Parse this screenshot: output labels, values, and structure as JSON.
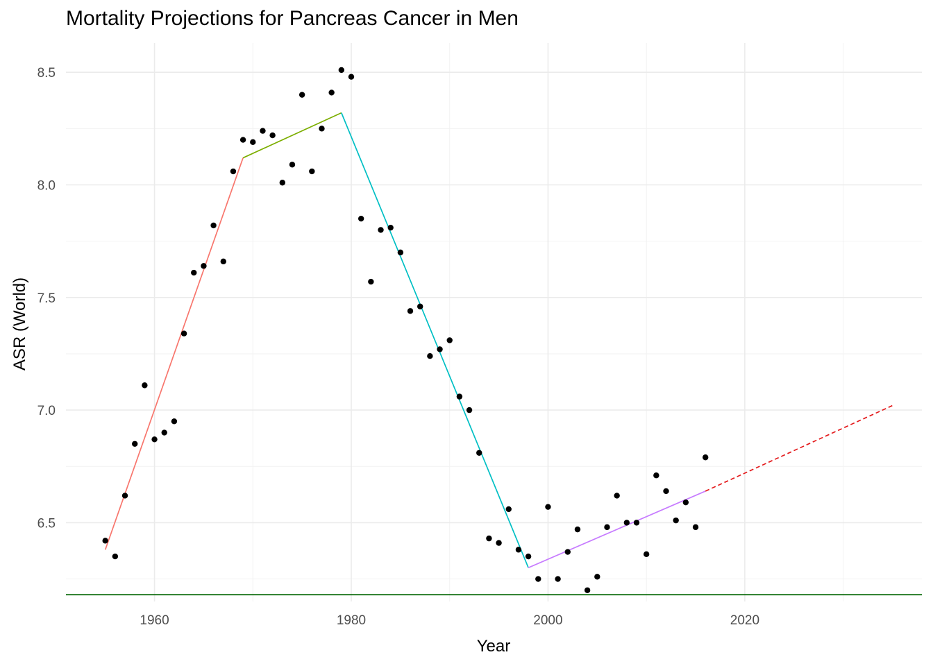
{
  "chart_data": {
    "type": "line",
    "title": "Mortality Projections for Pancreas Cancer in Men",
    "xlabel": "Year",
    "ylabel": "ASR (World)",
    "xlim": [
      1951,
      2038
    ],
    "ylim": [
      6.15,
      8.63
    ],
    "x_ticks": [
      1960,
      1980,
      2000,
      2020
    ],
    "y_ticks": [
      6.5,
      7.0,
      7.5,
      8.0,
      8.5
    ],
    "y_tick_labels": [
      "6.5",
      "7.0",
      "7.5",
      "8.0",
      "8.5"
    ],
    "grid": true,
    "legend": "none",
    "observed_points": {
      "x": [
        1955,
        1956,
        1957,
        1958,
        1959,
        1960,
        1961,
        1962,
        1963,
        1964,
        1965,
        1966,
        1967,
        1968,
        1969,
        1970,
        1971,
        1972,
        1973,
        1974,
        1975,
        1976,
        1977,
        1978,
        1979,
        1980,
        1981,
        1982,
        1983,
        1984,
        1985,
        1986,
        1987,
        1988,
        1989,
        1990,
        1991,
        1992,
        1993,
        1994,
        1995,
        1996,
        1997,
        1998,
        1999,
        2000,
        2001,
        2002,
        2003,
        2004,
        2005,
        2006,
        2007,
        2008,
        2009,
        2010,
        2011,
        2012,
        2013,
        2014,
        2015,
        2016
      ],
      "y": [
        6.42,
        6.35,
        6.62,
        6.85,
        7.11,
        6.87,
        6.9,
        6.95,
        7.34,
        7.61,
        7.64,
        7.82,
        7.66,
        8.06,
        8.2,
        8.19,
        8.24,
        8.22,
        8.01,
        8.09,
        8.4,
        8.06,
        8.25,
        8.41,
        8.51,
        8.48,
        7.85,
        7.57,
        7.8,
        7.81,
        7.7,
        7.44,
        7.46,
        7.24,
        7.27,
        7.31,
        7.06,
        7.0,
        6.81,
        6.43,
        6.41,
        6.56,
        6.38,
        6.35,
        6.25,
        6.57,
        6.25,
        6.37,
        6.47,
        6.2,
        6.26,
        6.48,
        6.62,
        6.5,
        6.5,
        6.36,
        6.71,
        6.64,
        6.51,
        6.59,
        6.48,
        6.79
      ],
      "color": "#000000"
    },
    "series": [
      {
        "x": [
          1955,
          1969
        ],
        "y": [
          6.38,
          8.12
        ],
        "color": "#F8766D",
        "style": "solid"
      },
      {
        "x": [
          1969,
          1979
        ],
        "y": [
          8.12,
          8.32
        ],
        "color": "#7CAE00",
        "style": "solid"
      },
      {
        "x": [
          1979,
          1998
        ],
        "y": [
          8.32,
          6.3
        ],
        "color": "#00BFC4",
        "style": "solid"
      },
      {
        "x": [
          1998,
          2016
        ],
        "y": [
          6.3,
          6.64
        ],
        "color": "#C77CFF",
        "style": "solid"
      },
      {
        "x": [
          2016,
          2035
        ],
        "y": [
          6.64,
          7.02
        ],
        "color": "#E41A1C",
        "style": "dashed"
      }
    ],
    "reference_line": {
      "y": 6.18,
      "color": "#006400"
    }
  }
}
